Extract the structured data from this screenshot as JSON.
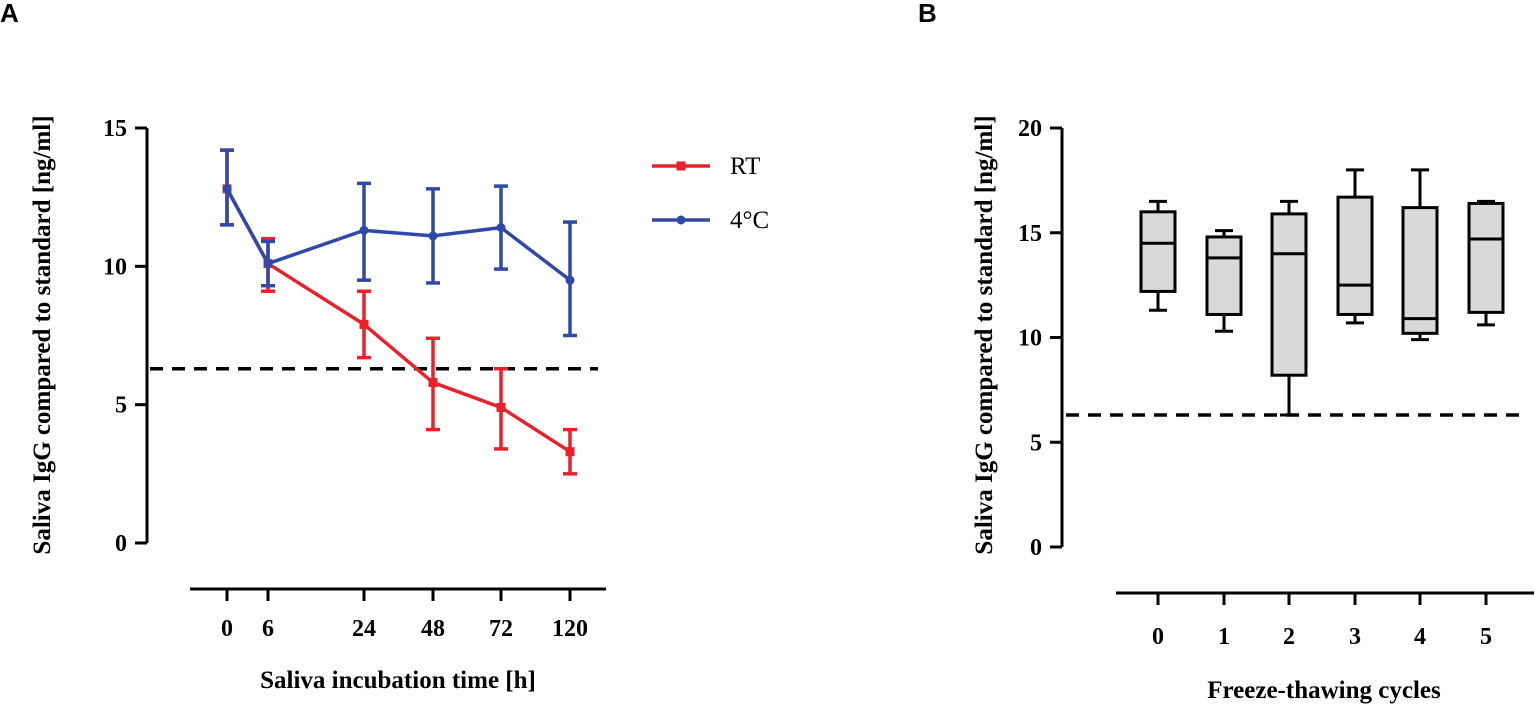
{
  "chart_data": [
    {
      "panel": "A",
      "type": "line",
      "categories": [
        "0",
        "6",
        "24",
        "48",
        "72",
        "120"
      ],
      "xlabel": "Saliva incubation time [h]",
      "ylabel": "Saliva IgG compared to standard [ng/ml]",
      "ylim": [
        0,
        15
      ],
      "yticks": [
        "0",
        "5",
        "10",
        "15"
      ],
      "reference_line": 6.3,
      "legend_position": "top-right",
      "series": [
        {
          "name": "RT",
          "color": "#e8212b",
          "marker": "square",
          "values": [
            12.8,
            10.1,
            7.9,
            5.8,
            4.9,
            3.3
          ],
          "err_low": [
            11.5,
            9.1,
            6.7,
            4.1,
            3.4,
            2.5
          ],
          "err_high": [
            14.2,
            11.0,
            9.1,
            7.4,
            6.3,
            4.1
          ]
        },
        {
          "name": "4°C",
          "color": "#2e49a8",
          "marker": "circle",
          "values": [
            12.8,
            10.1,
            11.3,
            11.1,
            11.4,
            9.5
          ],
          "err_low": [
            11.5,
            9.3,
            9.5,
            9.4,
            9.9,
            7.5
          ],
          "err_high": [
            14.2,
            10.9,
            13.0,
            12.8,
            12.9,
            11.6
          ]
        }
      ]
    },
    {
      "panel": "B",
      "type": "box",
      "categories": [
        "0",
        "1",
        "2",
        "3",
        "4",
        "5"
      ],
      "xlabel": "Freeze-thawing cycles",
      "ylabel": "Saliva IgG compared to standard [ng/ml]",
      "ylim": [
        0,
        20
      ],
      "yticks": [
        "0",
        "5",
        "10",
        "15",
        "20"
      ],
      "reference_line": 6.3,
      "box_color": "#d9d9d9",
      "boxes": [
        {
          "min": 11.3,
          "q1": 12.2,
          "median": 14.5,
          "q3": 16.0,
          "max": 16.5
        },
        {
          "min": 10.3,
          "q1": 11.1,
          "median": 13.8,
          "q3": 14.8,
          "max": 15.1
        },
        {
          "min": 6.3,
          "q1": 8.2,
          "median": 14.0,
          "q3": 15.9,
          "max": 16.5
        },
        {
          "min": 10.7,
          "q1": 11.1,
          "median": 12.5,
          "q3": 16.7,
          "max": 18.0
        },
        {
          "min": 9.9,
          "q1": 10.2,
          "median": 10.9,
          "q3": 16.2,
          "max": 18.0
        },
        {
          "min": 10.6,
          "q1": 11.2,
          "median": 14.7,
          "q3": 16.4,
          "max": 16.5
        }
      ]
    }
  ]
}
